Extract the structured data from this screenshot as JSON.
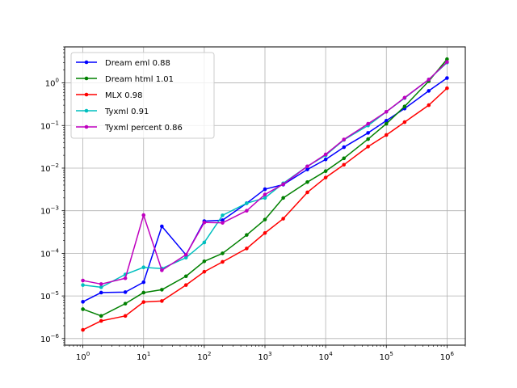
{
  "chart_data": {
    "type": "line",
    "x_scale": "log",
    "y_scale": "log",
    "xlim": [
      0.5,
      2000000
    ],
    "ylim": [
      7e-07,
      7
    ],
    "x_ticks": [
      {
        "value": 1,
        "base": "10",
        "exp": "0"
      },
      {
        "value": 10,
        "base": "10",
        "exp": "1"
      },
      {
        "value": 100,
        "base": "10",
        "exp": "2"
      },
      {
        "value": 1000,
        "base": "10",
        "exp": "3"
      },
      {
        "value": 10000,
        "base": "10",
        "exp": "4"
      },
      {
        "value": 100000,
        "base": "10",
        "exp": "5"
      },
      {
        "value": 1000000,
        "base": "10",
        "exp": "6"
      }
    ],
    "y_ticks": [
      {
        "value": 1e-06,
        "base": "10",
        "exp": "−6"
      },
      {
        "value": 1e-05,
        "base": "10",
        "exp": "−5"
      },
      {
        "value": 0.0001,
        "base": "10",
        "exp": "−4"
      },
      {
        "value": 0.001,
        "base": "10",
        "exp": "−3"
      },
      {
        "value": 0.01,
        "base": "10",
        "exp": "−2"
      },
      {
        "value": 0.1,
        "base": "10",
        "exp": "−1"
      },
      {
        "value": 1,
        "base": "10",
        "exp": "0"
      }
    ],
    "grid": true,
    "legend_position": "top-left",
    "series": [
      {
        "name": "Dream eml 0.88",
        "color": "#0000ff",
        "x": [
          1,
          2,
          5,
          10,
          20,
          50,
          100,
          200,
          500,
          1000,
          2000,
          5000,
          10000,
          20000,
          50000,
          100000,
          200000,
          500000,
          1000000
        ],
        "y": [
          7.3e-06,
          1.2e-05,
          1.23e-05,
          2.1e-05,
          0.00043,
          9.2e-05,
          0.00057,
          0.0006,
          0.0015,
          0.0032,
          0.0041,
          0.0093,
          0.016,
          0.031,
          0.067,
          0.13,
          0.25,
          0.65,
          1.3
        ]
      },
      {
        "name": "Dream html 1.01",
        "color": "#008000",
        "x": [
          1,
          2,
          5,
          10,
          20,
          50,
          100,
          200,
          500,
          1000,
          2000,
          5000,
          10000,
          20000,
          50000,
          100000,
          200000,
          500000,
          1000000
        ],
        "y": [
          4.9e-06,
          3.4e-06,
          6.6e-06,
          1.2e-05,
          1.4e-05,
          2.9e-05,
          6.5e-05,
          0.0001,
          0.00027,
          0.00062,
          0.002,
          0.0047,
          0.0085,
          0.017,
          0.048,
          0.11,
          0.28,
          1.1,
          3.6
        ]
      },
      {
        "name": "MLX 0.98",
        "color": "#ff0000",
        "x": [
          1,
          2,
          5,
          10,
          20,
          50,
          100,
          200,
          500,
          1000,
          2000,
          5000,
          10000,
          20000,
          50000,
          100000,
          200000,
          500000,
          1000000
        ],
        "y": [
          1.6e-06,
          2.6e-06,
          3.4e-06,
          7.2e-06,
          7.6e-06,
          1.8e-05,
          3.7e-05,
          6.3e-05,
          0.00013,
          0.0003,
          0.00065,
          0.0027,
          0.006,
          0.012,
          0.032,
          0.06,
          0.12,
          0.3,
          0.75
        ]
      },
      {
        "name": "Tyxml 0.91",
        "color": "#00bfbf",
        "x": [
          1,
          2,
          5,
          10,
          20,
          50,
          100,
          200,
          500,
          1000,
          2000,
          5000,
          10000,
          20000,
          50000,
          100000,
          200000,
          500000,
          1000000
        ],
        "y": [
          1.8e-05,
          1.6e-05,
          3.2e-05,
          4.7e-05,
          4.4e-05,
          7.9e-05,
          0.00018,
          0.00078,
          0.0015,
          0.002,
          0.0044,
          0.011,
          0.02,
          0.046,
          0.1,
          0.21,
          0.44,
          1.2,
          3
        ]
      },
      {
        "name": "Tyxml percent 0.86",
        "color": "#bf00bf",
        "x": [
          1,
          2,
          5,
          10,
          20,
          50,
          100,
          200,
          500,
          1000,
          2000,
          5000,
          10000,
          20000,
          50000,
          100000,
          200000,
          500000,
          1000000
        ],
        "y": [
          2.3e-05,
          1.9e-05,
          2.6e-05,
          0.00079,
          4e-05,
          9.3e-05,
          0.00053,
          0.00052,
          0.001,
          0.0024,
          0.0042,
          0.011,
          0.021,
          0.047,
          0.11,
          0.21,
          0.45,
          1.2,
          3.1
        ]
      }
    ]
  }
}
